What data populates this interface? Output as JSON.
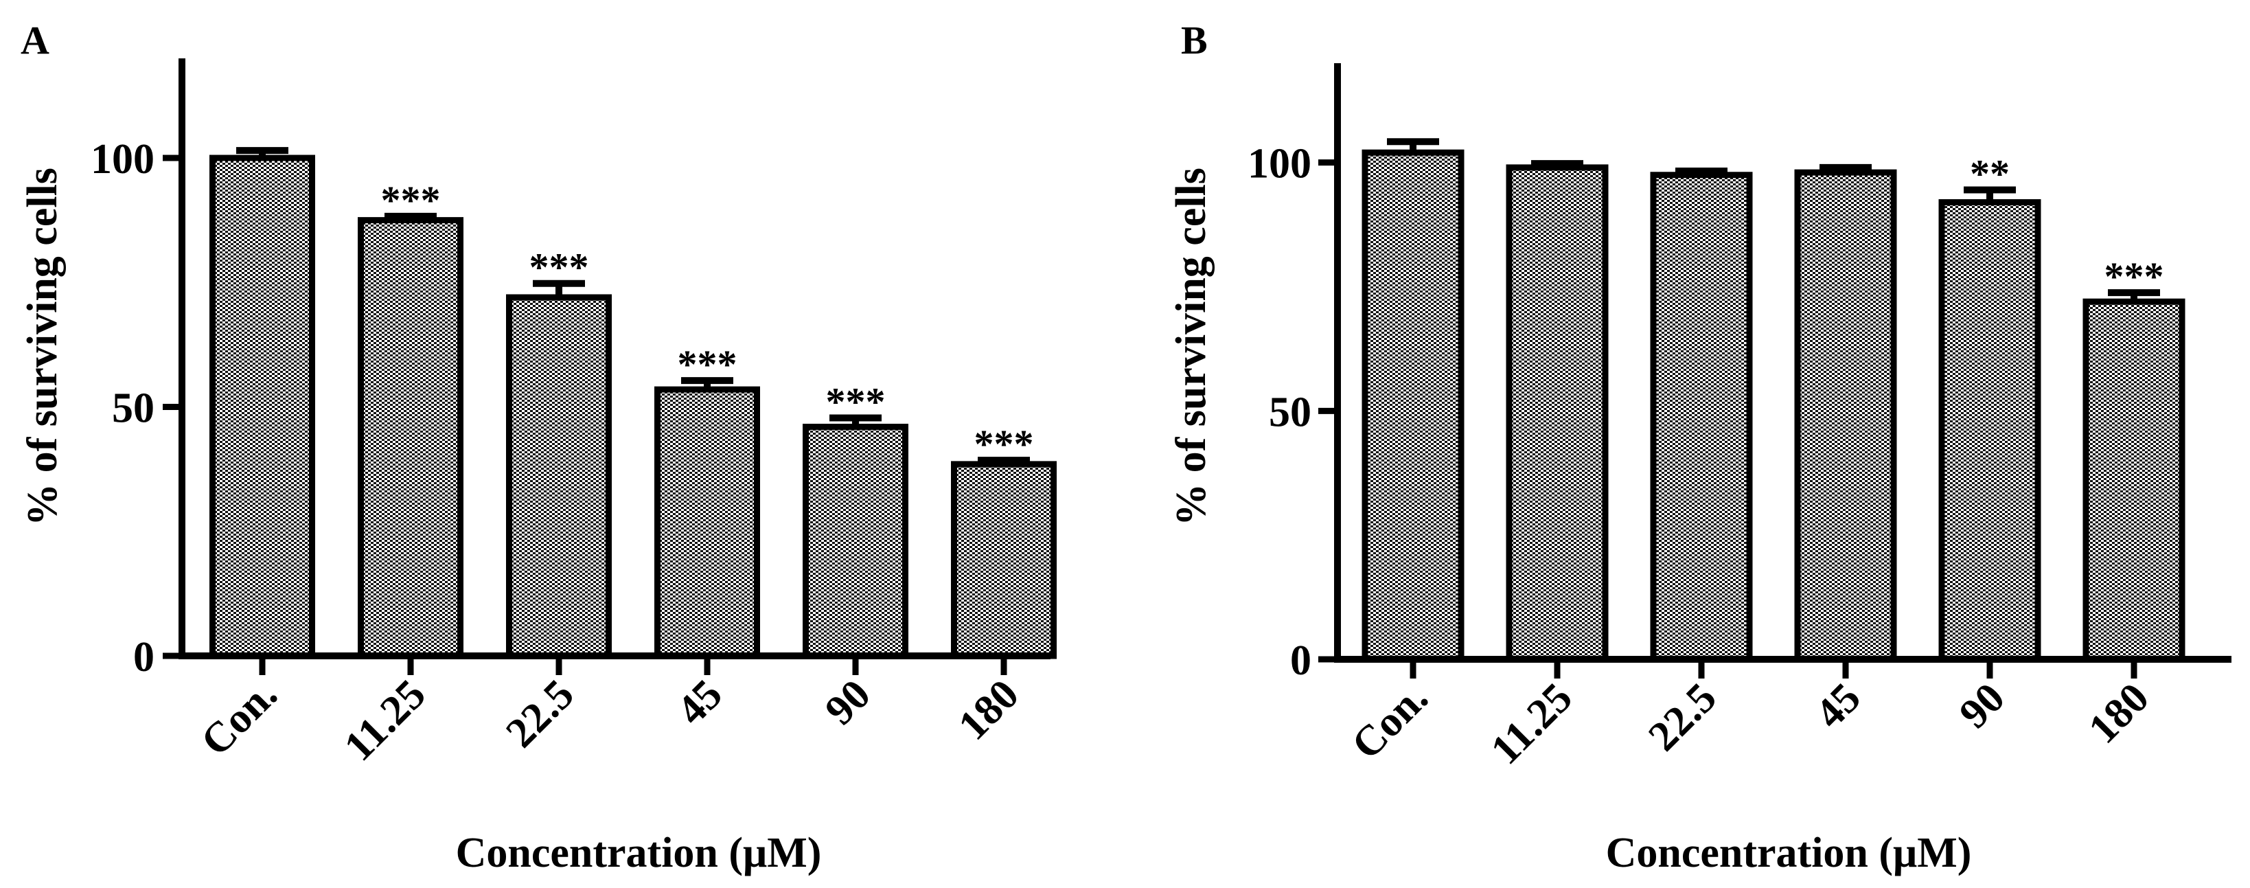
{
  "chart_data": [
    {
      "panel": "A",
      "type": "bar",
      "xlabel": "Concentration (μM)",
      "ylabel": "% of surviving cells",
      "ylim": [
        0,
        120
      ],
      "yticks": [
        0,
        50,
        100
      ],
      "categories": [
        "Con.",
        "11.25",
        "22.5",
        "45",
        "90",
        "180"
      ],
      "values": [
        100,
        87.5,
        72,
        53.5,
        46,
        38.5
      ],
      "errors": [
        1.5,
        0.8,
        2.8,
        1.8,
        1.8,
        0.8
      ],
      "annotations": [
        "",
        "***",
        "***",
        "***",
        "***",
        "***"
      ],
      "bar_fill": "checkered gray",
      "legend": "none"
    },
    {
      "panel": "B",
      "type": "bar",
      "xlabel": "Concentration (μM)",
      "ylabel": "% of surviving cells",
      "ylim": [
        0,
        120
      ],
      "yticks": [
        0,
        50,
        100
      ],
      "categories": [
        "Con.",
        "11.25",
        "22.5",
        "45",
        "90",
        "180"
      ],
      "values": [
        102,
        99,
        97.5,
        98,
        92,
        72
      ],
      "errors": [
        2.2,
        0.8,
        0.8,
        1,
        2.5,
        1.8
      ],
      "annotations": [
        "",
        "",
        "",
        "",
        "**",
        "***"
      ],
      "bar_fill": "checkered gray",
      "legend": "none"
    }
  ],
  "colors": {
    "axis": "#000000",
    "bar_dark": "#000000",
    "bar_light": "#ffffff"
  }
}
